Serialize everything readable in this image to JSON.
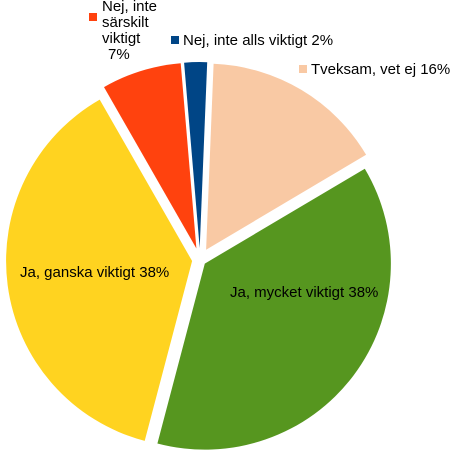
{
  "chart_data": {
    "type": "pie",
    "title": "",
    "legend": "none",
    "slices": [
      {
        "name": "Tveksam, vet ej",
        "value": 16,
        "label": "Tveksam, vet ej 16%",
        "color": "#f9c9a4"
      },
      {
        "name": "Ja, mycket viktigt",
        "value": 38,
        "label": "Ja, mycket viktigt 38%",
        "color": "#56961f"
      },
      {
        "name": "Ja, ganska viktigt",
        "value": 38,
        "label": "Ja, ganska viktigt 38%",
        "color": "#ffd320"
      },
      {
        "name": "Nej, inte särskilt viktigt",
        "value": 7,
        "label_lines": [
          "Nej, inte",
          "särskilt",
          "viktigt",
          "7%"
        ],
        "color": "#ff420e"
      },
      {
        "name": "Nej, inte alls viktigt",
        "value": 2,
        "label": "Nej, inte alls viktigt 2%",
        "color": "#004586"
      }
    ]
  }
}
